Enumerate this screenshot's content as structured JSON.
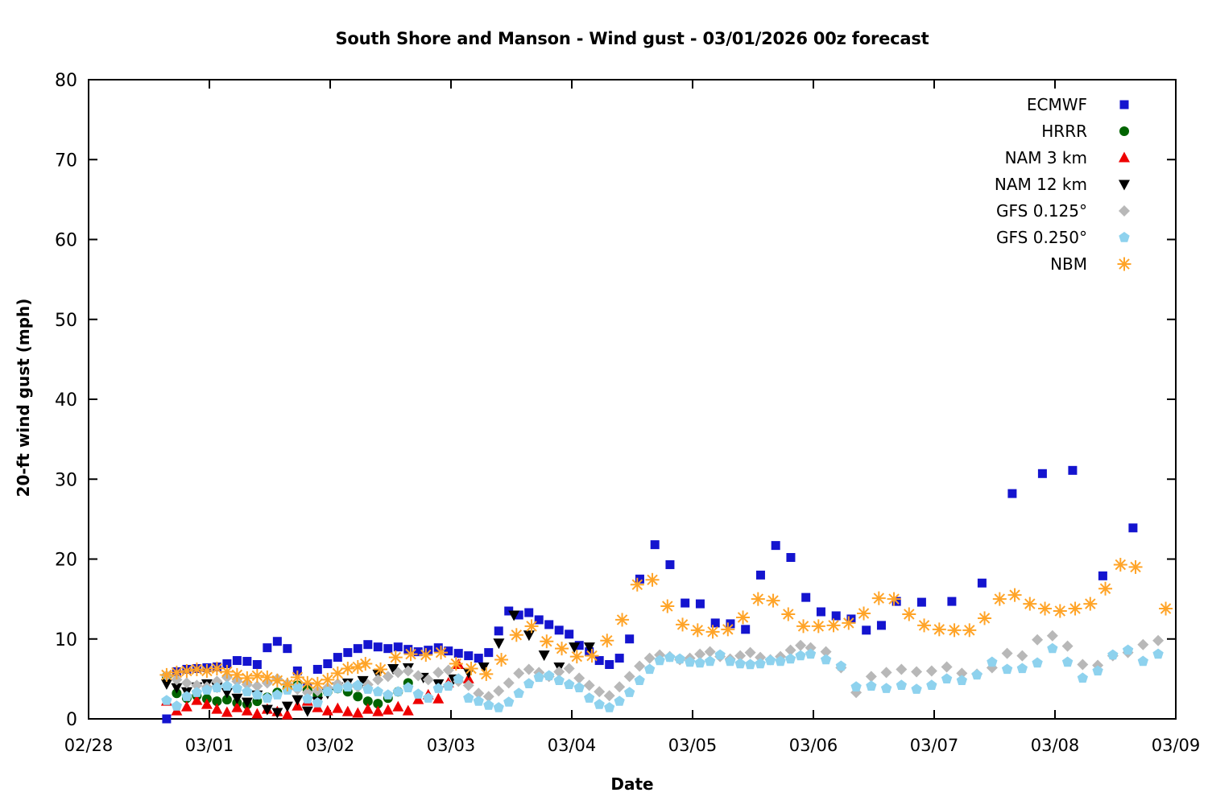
{
  "title": "South Shore and Manson - Wind gust - 03/01/2026 00z forecast",
  "chart_data": {
    "type": "scatter",
    "title": "South Shore and Manson - Wind gust - 03/01/2026 00z forecast",
    "xlabel": "Date",
    "ylabel": "20-ft wind gust (mph)",
    "x_unit": "days after 02/28",
    "xlim": [
      0,
      9
    ],
    "ylim": [
      0,
      80
    ],
    "grid": false,
    "legend_position": "top-right-inside",
    "x_ticks": [
      {
        "t": 0,
        "label": "02/28"
      },
      {
        "t": 1,
        "label": "03/01"
      },
      {
        "t": 2,
        "label": "03/02"
      },
      {
        "t": 3,
        "label": "03/03"
      },
      {
        "t": 4,
        "label": "03/04"
      },
      {
        "t": 5,
        "label": "03/05"
      },
      {
        "t": 6,
        "label": "03/06"
      },
      {
        "t": 7,
        "label": "03/07"
      },
      {
        "t": 8,
        "label": "03/08"
      },
      {
        "t": 9,
        "label": "03/09"
      }
    ],
    "y_ticks": [
      0,
      10,
      20,
      30,
      40,
      50,
      60,
      70,
      80
    ],
    "series": [
      {
        "name": "ECMWF",
        "marker": "square",
        "color": "#1414cf",
        "segments": [
          {
            "start": 0.646,
            "step": 0.0833,
            "values": [
              0.0,
              5.9,
              6.2,
              6.3,
              6.4,
              6.5,
              6.9,
              7.3,
              7.2,
              6.8,
              8.9,
              9.7,
              8.8,
              6.0,
              4.0,
              6.2,
              6.9,
              7.7,
              8.3,
              8.8,
              9.3,
              9.0,
              8.8,
              9.0,
              8.7,
              8.4,
              8.6,
              8.9,
              8.5,
              8.2,
              7.9,
              7.6,
              8.3,
              11.0,
              13.5,
              13.0,
              13.3,
              12.4,
              11.8,
              11.1,
              10.6,
              9.2,
              8.4,
              7.3,
              6.8,
              7.6,
              10.0
            ]
          },
          {
            "start": 4.563,
            "step": 0.125,
            "values": [
              17.5,
              21.8,
              19.3,
              14.5,
              14.4,
              12.0,
              11.9,
              11.2,
              18.0,
              21.7,
              20.2,
              15.2,
              13.4,
              12.9,
              12.5,
              11.1,
              11.7,
              14.7
            ]
          },
          {
            "start": 6.896,
            "step": 0.25,
            "values": [
              14.6,
              14.7,
              17.0,
              28.2,
              30.7,
              31.1,
              17.9,
              23.9
            ]
          }
        ]
      },
      {
        "name": "HRRR",
        "marker": "circle",
        "color": "#006400",
        "segments": [
          {
            "start": 0.646,
            "step": 0.0833,
            "values": [
              5.3,
              3.2,
              2.6,
              2.9,
              2.5,
              2.2,
              2.4,
              2.0,
              1.8,
              2.2,
              2.7,
              3.3,
              3.8,
              4.2,
              3.6,
              3.0,
              3.4,
              3.8,
              3.4,
              2.8,
              2.2,
              1.9,
              2.6,
              3.4,
              4.5
            ]
          }
        ]
      },
      {
        "name": "NAM 3 km",
        "marker": "triangle-up",
        "color": "#ee0000",
        "segments": [
          {
            "start": 0.646,
            "step": 0.0833,
            "values": [
              2.2,
              1.0,
              1.5,
              2.3,
              1.8,
              1.2,
              0.8,
              1.4,
              1.0,
              0.6,
              1.2,
              0.9,
              0.5,
              1.6,
              2.2,
              1.4,
              1.0,
              1.3,
              0.9,
              0.7,
              1.2,
              0.9,
              1.1,
              1.5,
              1.0,
              2.4,
              3.0,
              2.5,
              4.5,
              6.8,
              5.0
            ]
          }
        ]
      },
      {
        "name": "NAM 12 km",
        "marker": "triangle-down",
        "color": "#000000",
        "segments": [
          {
            "start": 0.646,
            "step": 0.0833,
            "values": [
              4.4,
              3.9,
              3.4,
              4.0,
              4.4,
              4.0,
              3.3,
              2.6,
              2.1,
              3.0,
              1.2,
              0.8,
              1.6,
              2.4,
              1.0,
              2.2,
              3.2,
              4.0,
              4.5
            ]
          },
          {
            "start": 2.271,
            "step": 0.125,
            "values": [
              4.8,
              5.6,
              6.3,
              6.4,
              5.2,
              4.4,
              5.0,
              5.8,
              6.5,
              9.5,
              13.0,
              10.5,
              8.0,
              6.5,
              9.0,
              9.0
            ]
          }
        ]
      },
      {
        "name": "GFS 0.125°",
        "marker": "diamond",
        "color": "#b8b8b8",
        "segments": [
          {
            "start": 0.646,
            "step": 0.0833,
            "values": [
              5.4,
              4.9,
              4.5,
              4.2,
              4.0,
              4.7,
              5.2,
              4.7,
              4.3,
              4.1,
              4.5,
              5.0,
              4.4,
              3.7,
              3.3,
              3.5,
              3.9,
              4.4,
              4.2,
              4.0,
              4.3,
              4.9,
              5.3,
              5.8,
              6.0,
              5.4,
              4.9,
              5.8,
              6.1,
              4.7,
              4.2,
              3.2,
              2.8,
              3.5,
              4.5,
              5.7,
              6.2,
              5.8,
              5.3,
              5.9,
              6.3,
              5.1,
              4.2,
              3.4,
              2.9,
              4.0,
              5.3,
              6.6,
              7.6,
              8.0,
              7.8,
              7.4,
              7.6,
              8.1,
              8.4,
              7.8,
              7.5,
              7.9,
              8.3,
              7.7,
              7.4,
              7.8,
              8.6,
              9.2,
              8.9
            ]
          },
          {
            "start": 6.104,
            "step": 0.125,
            "values": [
              8.4,
              6.4,
              3.3,
              5.3,
              5.8,
              6.2,
              5.9,
              6.0,
              6.5,
              5.7,
              5.6,
              6.4,
              8.2,
              7.9,
              9.9,
              10.4,
              9.1,
              6.8,
              6.7,
              7.9,
              8.3,
              9.3,
              9.8
            ]
          }
        ]
      },
      {
        "name": "GFS 0.250°",
        "marker": "pentagon",
        "color": "#8ed2ee",
        "segments": [
          {
            "start": 0.646,
            "step": 0.0833,
            "values": [
              2.3,
              1.6,
              2.8,
              3.3,
              3.6,
              3.9,
              4.1,
              3.8,
              3.4,
              3.0,
              2.6,
              3.0,
              3.6,
              4.0,
              2.5,
              2.0,
              3.4,
              3.8,
              4.0,
              4.2,
              3.7,
              3.4,
              3.0,
              3.4,
              3.9,
              3.1,
              2.6,
              3.8,
              4.1,
              5.0,
              2.6,
              2.2,
              1.7,
              1.4,
              2.1,
              3.2,
              4.4,
              5.2,
              5.4,
              4.8,
              4.3,
              3.9,
              2.6,
              1.8,
              1.4,
              2.2,
              3.3,
              4.8,
              6.2,
              7.3,
              7.7,
              7.5,
              7.1,
              7.0,
              7.2,
              8.0,
              7.2,
              6.9,
              6.8,
              6.9,
              7.3,
              7.2,
              7.5,
              7.9,
              8.1
            ]
          },
          {
            "start": 6.104,
            "step": 0.125,
            "values": [
              7.4,
              6.6,
              4.0,
              4.1,
              3.8,
              4.2,
              3.7,
              4.2,
              5.0,
              4.8,
              5.5,
              7.1,
              6.2,
              6.3,
              7.0,
              8.8,
              7.1,
              5.1,
              6.0,
              8.0,
              8.6,
              7.2,
              8.1
            ]
          }
        ]
      },
      {
        "name": "NBM",
        "marker": "asterisk",
        "color": "#ffa428",
        "segments": [
          {
            "start": 0.646,
            "step": 0.0833,
            "values": [
              5.5,
              5.8,
              6.0,
              6.2,
              6.0,
              6.3,
              5.9,
              5.5,
              5.1,
              5.4,
              5.2,
              4.8,
              4.3,
              5.2,
              4.5,
              4.4,
              4.9,
              5.7,
              6.3,
              6.5
            ]
          },
          {
            "start": 2.292,
            "step": 0.125,
            "values": [
              6.9,
              6.2,
              7.7,
              8.1,
              8.0,
              8.3,
              6.9,
              6.3,
              5.6,
              7.4,
              10.5,
              11.6,
              9.7,
              8.8,
              7.8,
              7.9,
              9.8,
              12.4,
              16.8,
              17.4,
              14.1,
              11.8,
              11.1,
              10.9,
              11.2,
              12.7,
              15.0,
              14.8,
              13.1,
              11.6,
              11.6,
              11.7,
              12.0,
              13.2,
              15.1,
              15.0,
              13.1,
              11.7,
              11.2,
              11.1,
              11.1,
              12.6,
              15.0,
              15.5,
              14.4,
              13.8,
              13.5,
              13.8,
              14.4,
              16.3,
              19.3,
              19.0,
              null,
              13.8
            ]
          }
        ]
      }
    ]
  }
}
